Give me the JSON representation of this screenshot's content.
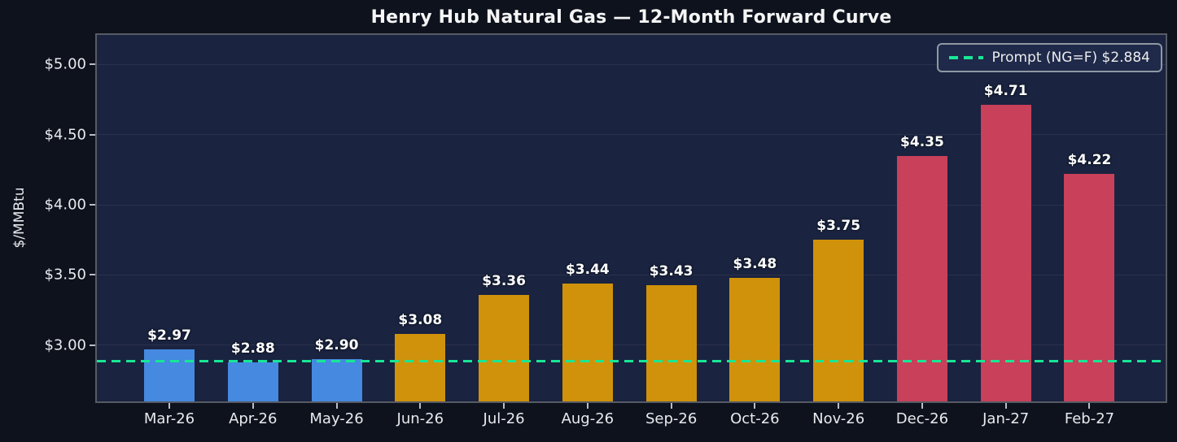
{
  "chart_data": {
    "type": "bar",
    "title": "Henry Hub Natural Gas — 12-Month Forward Curve",
    "xlabel": "",
    "ylabel": "$/MMBtu",
    "categories": [
      "Mar-26",
      "Apr-26",
      "May-26",
      "Jun-26",
      "Jul-26",
      "Aug-26",
      "Sep-26",
      "Oct-26",
      "Nov-26",
      "Dec-26",
      "Jan-27",
      "Feb-27"
    ],
    "values": [
      2.97,
      2.88,
      2.9,
      3.08,
      3.36,
      3.44,
      3.43,
      3.48,
      3.75,
      4.35,
      4.71,
      4.22
    ],
    "value_labels": [
      "$2.97",
      "$2.88",
      "$2.90",
      "$3.08",
      "$3.36",
      "$3.44",
      "$3.43",
      "$3.48",
      "$3.75",
      "$4.35",
      "$4.71",
      "$4.22"
    ],
    "bar_colors": [
      "#4589e0",
      "#4589e0",
      "#4589e0",
      "#d0920a",
      "#d0920a",
      "#d0920a",
      "#d0920a",
      "#d0920a",
      "#d0920a",
      "#c8405a",
      "#c8405a",
      "#c8405a"
    ],
    "yticks": {
      "values": [
        3.0,
        3.5,
        4.0,
        4.5,
        5.0
      ],
      "labels": [
        "$3.00",
        "$3.50",
        "$4.00",
        "$4.50",
        "$5.00"
      ]
    },
    "ylim": [
      2.6,
      5.21
    ],
    "grid": true,
    "legend": {
      "position": "upper right",
      "label": "Prompt (NG=F) $2.884",
      "line_style": "dashed",
      "line_color": "#17e795"
    },
    "reference_line": {
      "value": 2.884,
      "style": "dashed",
      "color": "#17e795"
    },
    "colors": {
      "near_month_bars": "#4589e0",
      "mid_curve_bars": "#d0920a",
      "winter_bars": "#c8405a",
      "prompt_line": "#17e795",
      "plot_background": "#1a2340",
      "page_background": "#0d121d",
      "gridline": "rgba(255,255,255,0.07)",
      "axis_spine": "#565b64",
      "text": "#e8eaed"
    }
  }
}
